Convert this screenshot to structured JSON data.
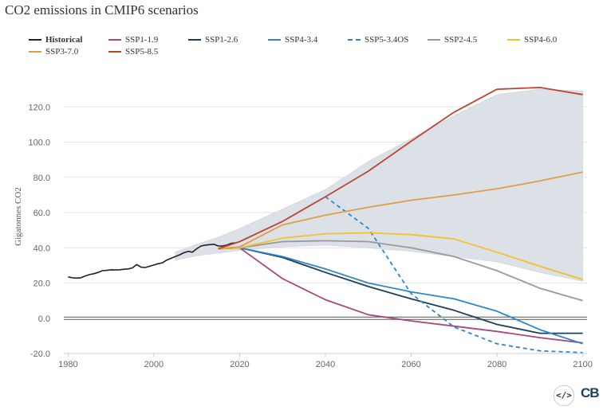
{
  "chart_data": {
    "type": "line",
    "title": "CO2 emissions in CMIP6 scenarios",
    "ylabel": "Gigatonnes CO2",
    "xlabel": "",
    "xlim": [
      1979,
      2101
    ],
    "ylim": [
      -20,
      140
    ],
    "x_ticks": [
      1980,
      2000,
      2020,
      2040,
      2060,
      2080,
      2100
    ],
    "x_tick_labels": [
      "1980",
      "2000",
      "2020",
      "2040",
      "2060",
      "2080",
      "2100"
    ],
    "y_ticks": [
      -20,
      0,
      20,
      40,
      60,
      80,
      100,
      120
    ],
    "y_tick_labels": [
      "-20.0",
      "0.0",
      "20.0",
      "40.0",
      "60.0",
      "80.0",
      "100.0",
      "120.0"
    ],
    "grid": "horizontal",
    "legend_position": "top",
    "band": {
      "color": "#d9dfe6",
      "x": [
        2005,
        2010,
        2015,
        2020,
        2030,
        2040,
        2050,
        2060,
        2070,
        2080,
        2090,
        2100
      ],
      "upper": [
        37.5,
        42,
        46,
        51,
        62,
        73,
        89,
        102,
        115,
        127,
        130,
        129
      ],
      "lower": [
        33,
        35.5,
        37,
        38.5,
        40.5,
        41.5,
        40,
        38,
        35,
        32,
        26,
        21
      ]
    },
    "series": [
      {
        "name": "Historical",
        "color": "#222222",
        "dashed": false,
        "x": [
          1980,
          1981,
          1982,
          1983,
          1984,
          1985,
          1986,
          1987,
          1988,
          1989,
          1990,
          1991,
          1992,
          1993,
          1994,
          1995,
          1996,
          1997,
          1998,
          1999,
          2000,
          2001,
          2002,
          2003,
          2004,
          2005,
          2006,
          2007,
          2008,
          2009,
          2010,
          2011,
          2012,
          2013,
          2014,
          2015,
          2016,
          2017,
          2018,
          2019
        ],
        "y": [
          23.5,
          23,
          22.8,
          23,
          24,
          24.8,
          25.3,
          26,
          27,
          27.2,
          27.5,
          27.4,
          27.5,
          27.8,
          28,
          28.6,
          30.5,
          29,
          28.8,
          29.5,
          30.2,
          31,
          31.5,
          33,
          34,
          35,
          36,
          37.2,
          38,
          37.5,
          39.5,
          41,
          41.5,
          41.8,
          42,
          41,
          41,
          41.5,
          42.5,
          42.8
        ]
      },
      {
        "name": "SSP1-1.9",
        "color": "#a8477b",
        "dashed": false,
        "x": [
          2015,
          2020,
          2030,
          2040,
          2050,
          2060,
          2070,
          2080,
          2090,
          2100
        ],
        "y": [
          39.5,
          40,
          22.5,
          10.5,
          2,
          -1.5,
          -4.5,
          -7.5,
          -11,
          -14
        ]
      },
      {
        "name": "SSP1-2.6",
        "color": "#1c3d5e",
        "dashed": false,
        "x": [
          2015,
          2020,
          2030,
          2040,
          2050,
          2060,
          2070,
          2080,
          2090,
          2100
        ],
        "y": [
          39.5,
          40,
          34.5,
          26,
          18,
          11,
          4.5,
          -3.5,
          -8.5,
          -8.5
        ]
      },
      {
        "name": "SSP4-3.4",
        "color": "#2f86c8",
        "dashed": false,
        "x": [
          2015,
          2020,
          2030,
          2040,
          2050,
          2060,
          2070,
          2080,
          2090,
          2100
        ],
        "y": [
          39.5,
          40,
          35,
          28,
          20,
          15,
          11,
          4,
          -6.5,
          -14.5
        ]
      },
      {
        "name": "SSP5-3.4OS",
        "color": "#2f86c8",
        "dashed": true,
        "x": [
          2040,
          2050,
          2060,
          2070,
          2080,
          2090,
          2100
        ],
        "y": [
          69,
          51,
          14,
          -5,
          -14.5,
          -18.5,
          -19.5
        ]
      },
      {
        "name": "SSP2-4.5",
        "color": "#999999",
        "dashed": false,
        "x": [
          2015,
          2020,
          2030,
          2040,
          2050,
          2060,
          2070,
          2080,
          2090,
          2100
        ],
        "y": [
          39.5,
          40,
          43.5,
          44,
          43.5,
          40,
          35,
          27,
          17,
          10
        ]
      },
      {
        "name": "SSP4-6.0",
        "color": "#f2c12e",
        "dashed": false,
        "x": [
          2015,
          2020,
          2030,
          2040,
          2050,
          2060,
          2070,
          2080,
          2090,
          2100
        ],
        "y": [
          39.5,
          40,
          45.5,
          48,
          48.5,
          47.5,
          45,
          37.5,
          29.5,
          22
        ]
      },
      {
        "name": "SSP3-7.0",
        "color": "#e39c46",
        "dashed": false,
        "x": [
          2015,
          2020,
          2030,
          2040,
          2050,
          2060,
          2070,
          2080,
          2090,
          2100
        ],
        "y": [
          39.5,
          40.5,
          53,
          58.5,
          63,
          67,
          70,
          73.5,
          78,
          83
        ]
      },
      {
        "name": "SSP5-8.5",
        "color": "#c1432f",
        "dashed": false,
        "x": [
          2015,
          2020,
          2030,
          2040,
          2050,
          2060,
          2070,
          2080,
          2090,
          2100
        ],
        "y": [
          39.5,
          43.5,
          55,
          69,
          83.5,
          100.5,
          117,
          130,
          131,
          127
        ]
      }
    ]
  },
  "footer": {
    "embed_icon": "code-icon",
    "embed_label": "</>",
    "logo_text": "CB"
  }
}
